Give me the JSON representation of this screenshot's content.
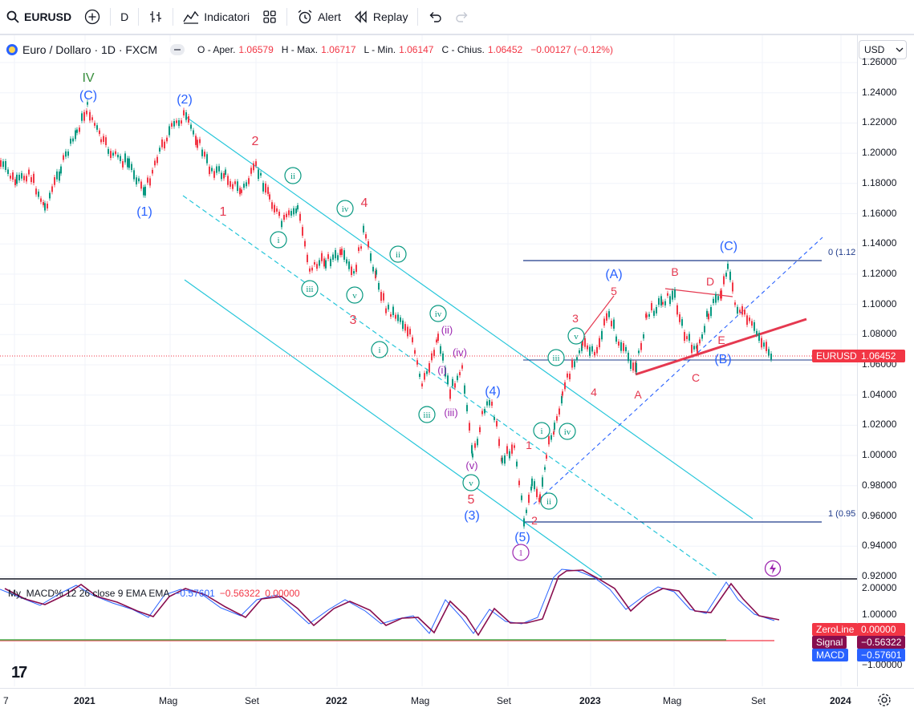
{
  "toolbar": {
    "symbol": "EURUSD",
    "interval": "D",
    "indicators_label": "Indicatori",
    "alert_label": "Alert",
    "replay_label": "Replay"
  },
  "legend": {
    "title": "Euro / Dollaro · 1D · FXCM",
    "o_label": "O - Aper.",
    "o_value": "1.06579",
    "h_label": "H - Max.",
    "h_value": "1.06717",
    "l_label": "L - Min.",
    "l_value": "1.06147",
    "c_label": "C - Chius.",
    "c_value": "1.06452",
    "change": "−0.00127 (−0.12%)"
  },
  "macd_legend": {
    "name": "My_MACD% 12 26 close 9 EMA EMA",
    "v1": "−0.57601",
    "v2": "−0.56322",
    "v3": "0.00000"
  },
  "currency": "USD",
  "price_scale": [
    "1.26000",
    "1.24000",
    "1.22000",
    "1.20000",
    "1.18000",
    "1.16000",
    "1.14000",
    "1.12000",
    "1.10000",
    "1.08000",
    "1.06000",
    "1.04000",
    "1.02000",
    "1.00000",
    "0.98000",
    "0.96000",
    "0.94000",
    "0.92000"
  ],
  "price_tag": {
    "label": "EURUSD",
    "value": "1.06452"
  },
  "macd_scale": [
    "2.00000",
    "1.00000",
    "−1.00000"
  ],
  "macd_tags": [
    {
      "label": "ZeroLine",
      "value": "0.00000",
      "color": "#f23645"
    },
    {
      "label": "Signal",
      "value": "−0.56322",
      "color": "#880e4f"
    },
    {
      "label": "MACD",
      "value": "−0.57601",
      "color": "#2962ff"
    }
  ],
  "time_scale": [
    {
      "label": "7",
      "bold": false
    },
    {
      "label": "2021",
      "bold": true
    },
    {
      "label": "Mag",
      "bold": false
    },
    {
      "label": "Set",
      "bold": false
    },
    {
      "label": "2022",
      "bold": true
    },
    {
      "label": "Mag",
      "bold": false
    },
    {
      "label": "Set",
      "bold": false
    },
    {
      "label": "2023",
      "bold": true
    },
    {
      "label": "Mag",
      "bold": false
    },
    {
      "label": "Set",
      "bold": false
    },
    {
      "label": "2024",
      "bold": true
    }
  ],
  "fib_labels": {
    "top": "0 (1.12",
    "bottom": "1 (0.95"
  },
  "wave_labels": [
    {
      "t": "IV",
      "c": "#388e3c"
    },
    {
      "t": "(C)",
      "c": "#2962ff"
    },
    {
      "t": "(2)",
      "c": "#2962ff"
    },
    {
      "t": "(1)",
      "c": "#2962ff"
    },
    {
      "t": "2",
      "c": "#e53950"
    },
    {
      "t": "1",
      "c": "#e53950"
    },
    {
      "t": "4",
      "c": "#e53950"
    },
    {
      "t": "3",
      "c": "#e53950"
    },
    {
      "t": "(4)",
      "c": "#2962ff"
    },
    {
      "t": "5",
      "c": "#e53950"
    },
    {
      "t": "(3)",
      "c": "#2962ff"
    },
    {
      "t": "(5)",
      "c": "#2962ff"
    },
    {
      "t": "1",
      "c": "#e53950"
    },
    {
      "t": "2",
      "c": "#e53950"
    },
    {
      "t": "3",
      "c": "#e53950"
    },
    {
      "t": "4",
      "c": "#e53950"
    },
    {
      "t": "5",
      "c": "#e53950"
    },
    {
      "t": "(A)",
      "c": "#2962ff"
    },
    {
      "t": "A",
      "c": "#e53950"
    },
    {
      "t": "B",
      "c": "#e53950"
    },
    {
      "t": "C",
      "c": "#e53950"
    },
    {
      "t": "D",
      "c": "#e53950"
    },
    {
      "t": "E",
      "c": "#e53950"
    },
    {
      "t": "(B)",
      "c": "#2962ff"
    },
    {
      "t": "(C)",
      "c": "#2962ff"
    },
    {
      "t": "(ii)",
      "c": "#9c27b0"
    },
    {
      "t": "(iv)",
      "c": "#9c27b0"
    },
    {
      "t": "(i)",
      "c": "#9c27b0"
    },
    {
      "t": "(iii)",
      "c": "#9c27b0"
    },
    {
      "t": "(v)",
      "c": "#9c27b0"
    }
  ],
  "circle_labels": [
    {
      "t": "ii",
      "c": "#089981"
    },
    {
      "t": "iv",
      "c": "#089981"
    },
    {
      "t": "i",
      "c": "#089981"
    },
    {
      "t": "iii",
      "c": "#089981"
    },
    {
      "t": "v",
      "c": "#089981"
    },
    {
      "t": "ii",
      "c": "#089981"
    },
    {
      "t": "iv",
      "c": "#089981"
    },
    {
      "t": "i",
      "c": "#089981"
    },
    {
      "t": "iii",
      "c": "#089981"
    },
    {
      "t": "v",
      "c": "#089981"
    },
    {
      "t": "v",
      "c": "#089981"
    },
    {
      "t": "iii",
      "c": "#089981"
    },
    {
      "t": "i",
      "c": "#089981"
    },
    {
      "t": "iv",
      "c": "#089981"
    },
    {
      "t": "ii",
      "c": "#089981"
    },
    {
      "t": "1",
      "c": "#9c27b0"
    }
  ],
  "colors": {
    "up": "#089981",
    "down": "#f23645",
    "channel": "#26c6da",
    "fib": "#1e3a8a",
    "trend": "#e53950"
  }
}
